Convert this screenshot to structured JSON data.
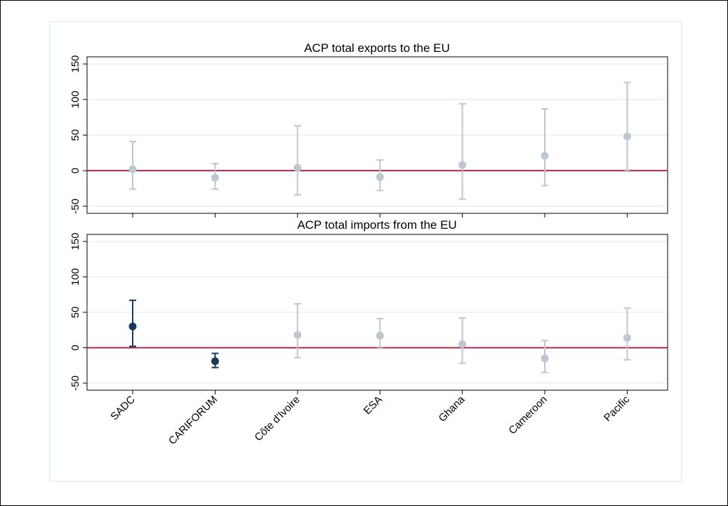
{
  "chart_data": [
    {
      "type": "scatter",
      "subtype": "point-with-error-bars",
      "title": "ACP total exports to the EU",
      "categories": [
        "SADC",
        "CARIFORUM",
        "Côte d'Ivoire",
        "ESA",
        "Ghana",
        "Cameroon",
        "Pacific"
      ],
      "estimates": [
        2,
        -10,
        4,
        -9,
        8,
        21,
        48
      ],
      "lower": [
        -26,
        -26,
        -34,
        -28,
        -40,
        -21,
        -1
      ],
      "upper": [
        41,
        10,
        63,
        15,
        94,
        87,
        124
      ],
      "significant": [
        false,
        false,
        false,
        false,
        false,
        false,
        false
      ],
      "ylim": [
        -60,
        160
      ],
      "yticks": [
        -50,
        0,
        50,
        100,
        150
      ],
      "reference_line_y": 0,
      "grid": true
    },
    {
      "type": "scatter",
      "subtype": "point-with-error-bars",
      "title": "ACP total imports from the EU",
      "categories": [
        "SADC",
        "CARIFORUM",
        "Côte d'Ivoire",
        "ESA",
        "Ghana",
        "Cameroon",
        "Pacific"
      ],
      "estimates": [
        30,
        -19,
        18,
        17,
        5,
        -15,
        14
      ],
      "lower": [
        2,
        -28,
        -14,
        -1,
        -22,
        -35,
        -17
      ],
      "upper": [
        67,
        -8,
        62,
        41,
        42,
        10,
        56
      ],
      "significant": [
        true,
        true,
        false,
        false,
        false,
        false,
        false
      ],
      "ylim": [
        -60,
        160
      ],
      "yticks": [
        -50,
        0,
        50,
        100,
        150
      ],
      "reference_line_y": 0,
      "grid": true
    }
  ],
  "colors": {
    "significant": "#1a3a5c",
    "not_significant": "#bcc7d0",
    "reference_line": "#a8294e",
    "grid": "#e6ecee",
    "plot_region_border": "#eef3f3",
    "axis": "#000000"
  }
}
